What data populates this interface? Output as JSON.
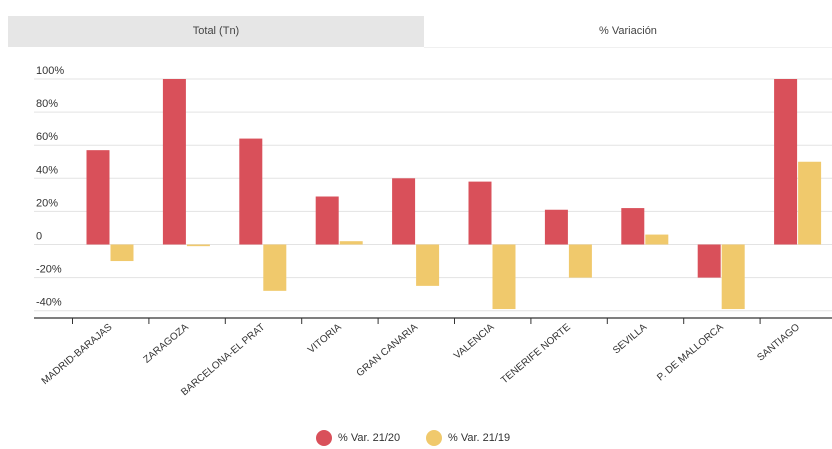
{
  "tabs": [
    {
      "label": "Total (Tn)",
      "active": false
    },
    {
      "label": "% Variación",
      "active": true
    }
  ],
  "chart_data": {
    "type": "bar",
    "title": "",
    "xlabel": "",
    "ylabel": "",
    "categories": [
      "MADRID-BARAJAS",
      "ZARAGOZA",
      "BARCELONA-EL PRAT",
      "VITORIA",
      "GRAN CANARIA",
      "VALENCIA",
      "TENERIFE NORTE",
      "SEVILLA",
      "P. DE MALLORCA",
      "SANTIAGO"
    ],
    "series": [
      {
        "name": "% Var. 21/20",
        "color": "#d9505a",
        "values": [
          57,
          100,
          64,
          29,
          40,
          38,
          21,
          22,
          -20,
          100
        ]
      },
      {
        "name": "% Var. 21/19",
        "color": "#f0c96c",
        "values": [
          -10,
          -1,
          -28,
          2,
          -25,
          -39,
          -20,
          6,
          -39,
          50
        ]
      }
    ],
    "yticks": [
      "100%",
      "80%",
      "60%",
      "40%",
      "20%",
      "0",
      "-20%",
      "-40%"
    ],
    "ylim": [
      -40,
      100
    ],
    "grid": true,
    "legend_position": "bottom"
  }
}
